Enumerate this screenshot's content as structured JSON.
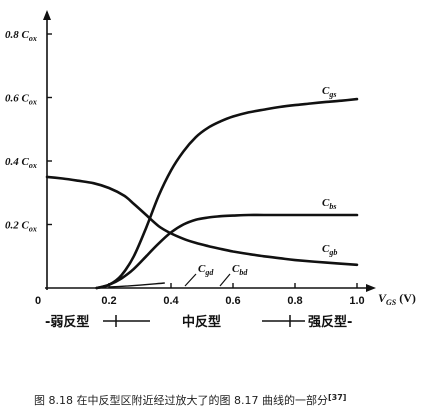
{
  "chart_data": {
    "type": "line",
    "xlim": [
      0,
      1.0
    ],
    "ylim": [
      0,
      0.8
    ],
    "x_ticks": [
      "0",
      "0.2",
      "0.4",
      "0.6",
      "0.8",
      "1.0"
    ],
    "y_ticks": [
      "0.2 C",
      "0.4 C",
      "0.6 C",
      "0.8 C"
    ],
    "y_tick_subscript": "ox",
    "xlabel": "V",
    "xlabel_subscript": "GS",
    "xlabel_unit": "(V)",
    "grid": false,
    "series": [
      {
        "name": "C",
        "subscript": "gs",
        "x": [
          0.16,
          0.2,
          0.24,
          0.28,
          0.32,
          0.36,
          0.4,
          0.44,
          0.48,
          0.52,
          0.56,
          0.6,
          0.65,
          0.7,
          0.75,
          0.8,
          0.85,
          0.9,
          0.95,
          1.0
        ],
        "y": [
          0.0,
          0.01,
          0.04,
          0.1,
          0.19,
          0.29,
          0.37,
          0.43,
          0.475,
          0.505,
          0.525,
          0.54,
          0.553,
          0.562,
          0.57,
          0.576,
          0.581,
          0.586,
          0.59,
          0.595
        ]
      },
      {
        "name": "C",
        "subscript": "bs",
        "x": [
          0.16,
          0.2,
          0.24,
          0.28,
          0.32,
          0.36,
          0.4,
          0.44,
          0.48,
          0.52,
          0.56,
          0.6,
          0.65,
          0.7,
          0.8,
          0.9,
          1.0
        ],
        "y": [
          0.0,
          0.01,
          0.03,
          0.06,
          0.1,
          0.14,
          0.175,
          0.2,
          0.215,
          0.222,
          0.226,
          0.228,
          0.23,
          0.23,
          0.23,
          0.23,
          0.23
        ]
      },
      {
        "name": "C",
        "subscript": "gb",
        "x": [
          0.0,
          0.05,
          0.1,
          0.15,
          0.2,
          0.25,
          0.28,
          0.32,
          0.36,
          0.4,
          0.44,
          0.48,
          0.52,
          0.56,
          0.6,
          0.65,
          0.7,
          0.75,
          0.8,
          0.9,
          1.0
        ],
        "y": [
          0.35,
          0.345,
          0.338,
          0.33,
          0.315,
          0.29,
          0.265,
          0.23,
          0.195,
          0.172,
          0.155,
          0.142,
          0.132,
          0.123,
          0.115,
          0.107,
          0.1,
          0.094,
          0.088,
          0.08,
          0.073
        ]
      }
    ],
    "annotations": [
      {
        "name": "C",
        "subscript": "gd"
      },
      {
        "name": "C",
        "subscript": "bd"
      }
    ]
  },
  "regions": {
    "weak": "-弱反型",
    "moderate": "中反型",
    "strong": "强反型-"
  },
  "caption": "图 8.18   在中反型区附近经过放大了的图 8.17 曲线的一部分",
  "caption_ref": "[37]"
}
